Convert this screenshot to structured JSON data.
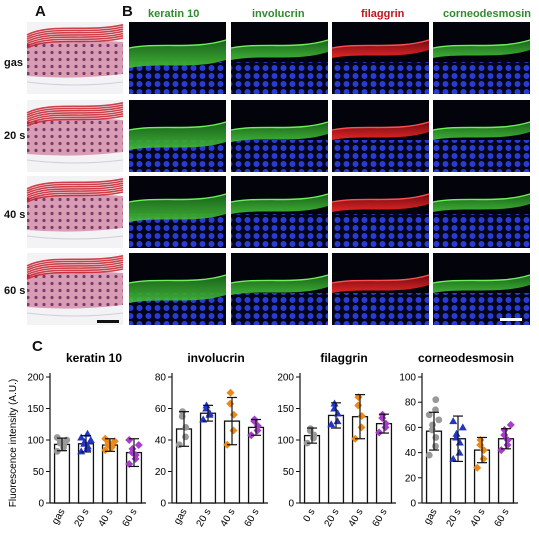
{
  "panels": {
    "a": "A",
    "b": "B",
    "c": "C"
  },
  "rows": [
    "gas",
    "20 s",
    "40 s",
    "60 s"
  ],
  "markers": [
    {
      "name": "keratin 10",
      "color": "#2e8b2e"
    },
    {
      "name": "involucrin",
      "color": "#2e8b2e"
    },
    {
      "name": "filaggrin",
      "color": "#c0141c"
    },
    {
      "name": "corneodesmosin",
      "color": "#2e8b2e"
    }
  ],
  "chart_ylabel": "Fluorescence intensity (A.U.)",
  "chart_data": [
    {
      "type": "bar",
      "title": "keratin 10",
      "categories": [
        "gas",
        "20 s",
        "40 s",
        "60 s"
      ],
      "values": [
        93,
        94,
        92,
        80
      ],
      "errors": [
        10,
        13,
        10,
        22
      ],
      "ylim": [
        0,
        200
      ],
      "yticks": [
        0,
        50,
        100,
        150,
        200
      ],
      "ylabel": "Fluorescence intensity (A.U.)",
      "points": [
        [
          82,
          88,
          92,
          95,
          98,
          100,
          104
        ],
        [
          82,
          87,
          90,
          94,
          97,
          100,
          104,
          110
        ],
        [
          84,
          88,
          90,
          92,
          95,
          98,
          102
        ],
        [
          62,
          70,
          76,
          80,
          86,
          92,
          100
        ]
      ]
    },
    {
      "type": "bar",
      "title": "involucrin",
      "categories": [
        "gas",
        "20 s",
        "40 s",
        "60 s"
      ],
      "values": [
        47,
        57,
        52,
        48
      ],
      "errors": [
        11,
        5,
        15,
        5
      ],
      "ylim": [
        0,
        80
      ],
      "yticks": [
        0,
        20,
        40,
        60,
        80
      ],
      "points": [
        [
          37,
          42,
          48,
          55,
          58
        ],
        [
          53,
          56,
          57,
          60,
          62
        ],
        [
          37,
          46,
          56,
          63,
          70
        ],
        [
          43,
          46,
          49,
          52,
          53
        ]
      ]
    },
    {
      "type": "bar",
      "title": "filaggrin",
      "categories": [
        "0 s",
        "20 s",
        "40 s",
        "60 s"
      ],
      "values": [
        107,
        139,
        137,
        126
      ],
      "errors": [
        12,
        20,
        35,
        15
      ],
      "ylim": [
        0,
        200
      ],
      "yticks": [
        0,
        50,
        100,
        150,
        200
      ],
      "points": [
        [
          95,
          103,
          108,
          115,
          118
        ],
        [
          125,
          130,
          142,
          150,
          158
        ],
        [
          102,
          120,
          138,
          155,
          168
        ],
        [
          112,
          120,
          126,
          135,
          140
        ]
      ]
    },
    {
      "type": "bar",
      "title": "corneodesmosin",
      "categories": [
        "gas",
        "20 s",
        "40 s",
        "60 s"
      ],
      "values": [
        57,
        51,
        42,
        51
      ],
      "errors": [
        15,
        18,
        10,
        8
      ],
      "ylim": [
        0,
        100
      ],
      "yticks": [
        0,
        20,
        40,
        60,
        80,
        100
      ],
      "points": [
        [
          38,
          45,
          52,
          58,
          62,
          66,
          70,
          74,
          82
        ],
        [
          35,
          40,
          48,
          52,
          55,
          60,
          65
        ],
        [
          28,
          35,
          42,
          46,
          50
        ],
        [
          42,
          46,
          50,
          54,
          58,
          62
        ]
      ]
    }
  ],
  "chart_colors": [
    "#999999",
    "#2236c4",
    "#e8891a",
    "#a53fc9"
  ],
  "histology": {
    "stratum_color": "#c81e2a",
    "tissue_color": "#d9a6b8"
  }
}
